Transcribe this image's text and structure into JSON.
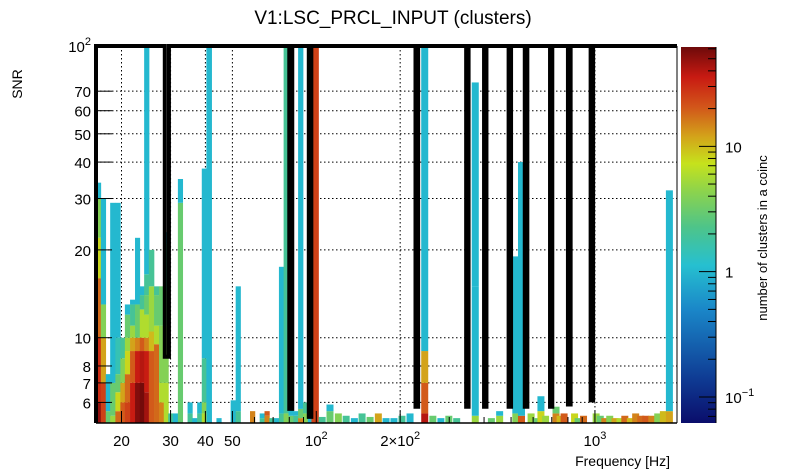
{
  "chart_data": {
    "type": "heatmap",
    "title": "V1:LSC_PRCL_INPUT (clusters)",
    "xlabel": "Frequency [Hz]",
    "ylabel": "SNR",
    "zlabel": "number of clusters in a coinc",
    "xscale": "log",
    "yscale": "log",
    "zscale": "log",
    "xlim": [
      16.2,
      1970
    ],
    "ylim": [
      5.1,
      100
    ],
    "zlim": [
      0.062,
      62
    ],
    "grid": true,
    "colorbar_position": "right",
    "x_ticks": [
      {
        "value": 20,
        "label": "20"
      },
      {
        "value": 30,
        "label": "30"
      },
      {
        "value": 40,
        "label": "40"
      },
      {
        "value": 50,
        "label": "50"
      },
      {
        "value": 100,
        "label": "10",
        "sup": "2"
      },
      {
        "value": 200,
        "label": "2×10",
        "sup": "2"
      },
      {
        "value": 1000,
        "label": "10",
        "sup": "3"
      }
    ],
    "y_ticks": [
      {
        "value": 6,
        "label": "6"
      },
      {
        "value": 7,
        "label": "7"
      },
      {
        "value": 8,
        "label": "8"
      },
      {
        "value": 10,
        "label": "10"
      },
      {
        "value": 20,
        "label": "20"
      },
      {
        "value": 30,
        "label": "30"
      },
      {
        "value": 40,
        "label": "40"
      },
      {
        "value": 50,
        "label": "50"
      },
      {
        "value": 60,
        "label": "60"
      },
      {
        "value": 70,
        "label": "70"
      },
      {
        "value": 100,
        "label": "10",
        "sup": "2"
      }
    ],
    "z_ticks": [
      {
        "value": 0.1,
        "label": "10",
        "sup": "−1"
      },
      {
        "value": 1,
        "label": "1"
      },
      {
        "value": 10,
        "label": "10"
      }
    ],
    "columns": [
      {
        "f": 16.5,
        "segments": [
          [
            5.1,
            6,
            50
          ],
          [
            6,
            10,
            30
          ],
          [
            10,
            16,
            18
          ],
          [
            16,
            22,
            8
          ],
          [
            22,
            30,
            4
          ],
          [
            30,
            34,
            1
          ]
        ]
      },
      {
        "f": 17.2,
        "segments": [
          [
            5.1,
            7,
            25
          ],
          [
            7,
            10,
            12
          ],
          [
            10,
            13,
            4
          ],
          [
            13,
            30,
            1
          ]
        ]
      },
      {
        "f": 17.9,
        "segments": [
          [
            5.1,
            5.6,
            3
          ],
          [
            5.6,
            7.5,
            1
          ]
        ]
      },
      {
        "f": 18.6,
        "segments": [
          [
            5.1,
            5.4,
            5
          ],
          [
            5.4,
            7,
            3
          ],
          [
            7,
            11.5,
            1
          ],
          [
            11.5,
            29,
            1
          ]
        ]
      },
      {
        "f": 19.4,
        "segments": [
          [
            5.1,
            5.6,
            18
          ],
          [
            5.6,
            6.5,
            8
          ],
          [
            6.5,
            7.5,
            3
          ],
          [
            7.5,
            10,
            1.5
          ],
          [
            10,
            29,
            1
          ]
        ]
      },
      {
        "f": 20.2,
        "segments": [
          [
            5.1,
            6,
            20
          ],
          [
            6,
            7,
            12
          ],
          [
            7,
            8.5,
            4
          ],
          [
            8.5,
            10,
            2
          ],
          [
            10,
            10,
            1.5
          ]
        ]
      },
      {
        "f": 21.0,
        "segments": [
          [
            5.1,
            6,
            25
          ],
          [
            6,
            7.5,
            18
          ],
          [
            7.5,
            9,
            8
          ],
          [
            9,
            10,
            5
          ],
          [
            10,
            12,
            3
          ],
          [
            12,
            13,
            1
          ]
        ]
      },
      {
        "f": 21.9,
        "segments": [
          [
            5.1,
            7,
            35
          ],
          [
            7,
            9,
            20
          ],
          [
            9,
            10,
            12
          ],
          [
            10,
            11,
            5
          ],
          [
            11,
            13,
            2
          ],
          [
            13,
            13.5,
            1
          ]
        ]
      },
      {
        "f": 22.8,
        "segments": [
          [
            5.1,
            7,
            55
          ],
          [
            7,
            9,
            35
          ],
          [
            9,
            10,
            15
          ],
          [
            10,
            13,
            3
          ],
          [
            13,
            22,
            1
          ]
        ]
      },
      {
        "f": 23.7,
        "segments": [
          [
            5.1,
            7,
            60
          ],
          [
            7,
            9,
            40
          ],
          [
            9,
            10,
            20
          ],
          [
            10,
            12.5,
            6
          ],
          [
            12.5,
            14,
            2
          ],
          [
            14,
            15,
            1
          ]
        ]
      },
      {
        "f": 24.6,
        "segments": [
          [
            5.1,
            6.5,
            45
          ],
          [
            6.5,
            9,
            35
          ],
          [
            9,
            10,
            15
          ],
          [
            10,
            12,
            6
          ],
          [
            12,
            14,
            3
          ],
          [
            14,
            16.5,
            2
          ],
          [
            16.5,
            100,
            1
          ]
        ]
      },
      {
        "f": 25.6,
        "segments": [
          [
            5.1,
            9,
            20
          ],
          [
            9,
            10.5,
            10
          ],
          [
            10.5,
            15,
            5
          ],
          [
            15,
            20,
            2
          ]
        ]
      },
      {
        "f": 26.7,
        "segments": [
          [
            5.1,
            9.5,
            18
          ],
          [
            9.5,
            11,
            6
          ],
          [
            11,
            14,
            3
          ],
          [
            14,
            15,
            2
          ]
        ]
      },
      {
        "f": 27.8,
        "segments": [
          [
            5.1,
            6,
            15
          ],
          [
            6,
            7,
            6
          ],
          [
            7,
            11,
            4
          ],
          [
            11,
            15,
            3
          ]
        ]
      },
      {
        "f": 28.9,
        "segments": [
          [
            5.1,
            7,
            6
          ],
          [
            7,
            11,
            4
          ],
          [
            11,
            14.5,
            3
          ],
          [
            14.5,
            21,
            2
          ],
          [
            21,
            23,
            1
          ]
        ]
      },
      {
        "f": 30.0,
        "segments": [
          [
            5.1,
            5.5,
            2
          ]
        ]
      },
      {
        "f": 31.2,
        "segments": [
          [
            5.1,
            5.5,
            1
          ]
        ]
      },
      {
        "f": 32.5,
        "segments": [
          [
            5.1,
            29,
            3
          ],
          [
            29,
            35,
            1
          ]
        ]
      },
      {
        "f": 33.8,
        "segments": []
      },
      {
        "f": 35.2,
        "segments": [
          [
            5.1,
            5.5,
            2
          ],
          [
            5.5,
            6,
            1
          ]
        ]
      },
      {
        "f": 36.6,
        "segments": [
          [
            5.1,
            5.3,
            1
          ]
        ]
      },
      {
        "f": 38.1,
        "segments": [
          [
            5.1,
            5.5,
            2
          ],
          [
            5.5,
            6,
            1
          ]
        ]
      },
      {
        "f": 39.6,
        "segments": [
          [
            5.1,
            5.5,
            6
          ],
          [
            5.5,
            6,
            4
          ],
          [
            6,
            8.5,
            2
          ],
          [
            8.5,
            38,
            1
          ]
        ]
      },
      {
        "f": 41.2,
        "segments": [
          [
            5.1,
            100,
            1
          ]
        ]
      },
      {
        "f": 43.0,
        "segments": []
      },
      {
        "f": 44.7,
        "segments": [
          [
            5.1,
            5.3,
            1
          ]
        ]
      },
      {
        "f": 46.5,
        "segments": []
      },
      {
        "f": 48.4,
        "segments": []
      },
      {
        "f": 50.3,
        "segments": [
          [
            5.1,
            6.1,
            1
          ]
        ]
      },
      {
        "f": 52.4,
        "segments": [
          [
            5.1,
            5.6,
            2
          ],
          [
            5.6,
            15,
            1
          ]
        ]
      },
      {
        "f": 54.5,
        "segments": []
      },
      {
        "f": 56.7,
        "segments": []
      },
      {
        "f": 59.0,
        "segments": [
          [
            5.1,
            5.6,
            15
          ]
        ]
      },
      {
        "f": 61.4,
        "segments": []
      },
      {
        "f": 63.9,
        "segments": [
          [
            5.1,
            5.3,
            2
          ],
          [
            5.3,
            5.5,
            1
          ]
        ]
      },
      {
        "f": 66.5,
        "segments": [
          [
            5.1,
            5.4,
            15
          ],
          [
            5.4,
            5.6,
            20
          ]
        ]
      },
      {
        "f": 69.2,
        "segments": [
          [
            5.1,
            5.3,
            2
          ]
        ]
      },
      {
        "f": 72.0,
        "segments": [
          [
            5.1,
            5.3,
            1
          ]
        ]
      },
      {
        "f": 74.9,
        "segments": [
          [
            5.1,
            5.5,
            2
          ],
          [
            5.5,
            17.5,
            1
          ]
        ]
      },
      {
        "f": 77.9,
        "segments": [
          [
            5.1,
            5.5,
            4
          ],
          [
            5.5,
            100,
            2
          ]
        ]
      },
      {
        "f": 81.1,
        "segments": [
          [
            5.1,
            5.4,
            3
          ],
          [
            5.4,
            5.7,
            1
          ]
        ]
      },
      {
        "f": 84.4,
        "segments": [
          [
            5.1,
            5.4,
            2
          ],
          [
            5.4,
            5.6,
            1
          ]
        ]
      },
      {
        "f": 87.8,
        "segments": [
          [
            5.1,
            5.3,
            15
          ],
          [
            5.3,
            5.7,
            3
          ],
          [
            5.7,
            100,
            1
          ]
        ]
      },
      {
        "f": 91.4,
        "segments": [
          [
            5.1,
            5.5,
            4
          ],
          [
            5.5,
            6,
            2
          ]
        ]
      },
      {
        "f": 95.1,
        "segments": [
          [
            5.1,
            5.3,
            1
          ]
        ]
      },
      {
        "f": 98.9,
        "segments": [
          [
            5.1,
            100,
            25
          ]
        ]
      }
    ],
    "contours": [
      {
        "f_min": 28.6,
        "f_max": 29.6,
        "snr_min": 8.6,
        "fill": null
      },
      {
        "f_min": 80.0,
        "f_max": 82.0,
        "snr_min": 5.7,
        "fill": 22
      },
      {
        "f_min": 94.0,
        "f_max": 96.0,
        "snr_min": 5.35,
        "fill": 25
      },
      {
        "f_min": 227,
        "f_max": 232,
        "snr_min": 5.8,
        "fill": 20
      },
      {
        "f_min": 345,
        "f_max": 352,
        "snr_min": 5.8,
        "fill": 20
      },
      {
        "f_min": 400,
        "f_max": 408,
        "snr_min": 5.8,
        "fill": 18
      },
      {
        "f_min": 490,
        "f_max": 500,
        "snr_min": 5.8,
        "fill": 22
      },
      {
        "f_min": 560,
        "f_max": 572,
        "snr_min": 5.8,
        "fill": 18
      },
      {
        "f_min": 690,
        "f_max": 703,
        "snr_min": 5.8,
        "fill": 22
      },
      {
        "f_min": 800,
        "f_max": 818,
        "snr_min": 5.9,
        "fill": 20
      },
      {
        "f_min": 965,
        "f_max": 985,
        "snr_min": 6.1,
        "fill": 25
      }
    ],
    "notes": "Log-log histogram of cluster SNR vs frequency; black outlines mark coincident frequency bands, color shows number of clusters in a coinc (log scale)."
  }
}
